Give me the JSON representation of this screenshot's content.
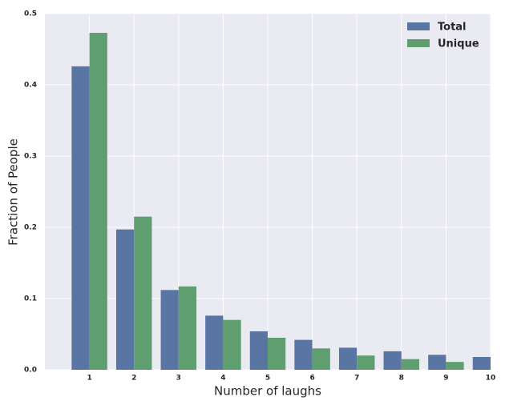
{
  "chart_data": {
    "type": "bar",
    "x_label": "Number of laughs",
    "y_label": "Fraction of People",
    "x": [
      1,
      2,
      3,
      4,
      5,
      6,
      7,
      8,
      9,
      10
    ],
    "series": [
      {
        "name": "Total",
        "color": "#5975a4",
        "values": [
          0.426,
          0.197,
          0.112,
          0.076,
          0.054,
          0.042,
          0.031,
          0.026,
          0.021,
          0.018
        ]
      },
      {
        "name": "Unique",
        "color": "#5f9e6e",
        "values": [
          0.473,
          0.215,
          0.117,
          0.07,
          0.045,
          0.03,
          0.02,
          0.015,
          0.011,
          null
        ]
      }
    ],
    "xlim": [
      0,
      10
    ],
    "xticks": [
      1,
      2,
      3,
      4,
      5,
      6,
      7,
      8,
      9,
      10
    ],
    "ylim": [
      0,
      0.5
    ],
    "yticks": [
      {
        "value": 0,
        "label": "0.0"
      },
      0.1,
      0.2,
      0.3,
      0.4,
      0.5
    ],
    "grid": true,
    "legend": "upper right"
  }
}
